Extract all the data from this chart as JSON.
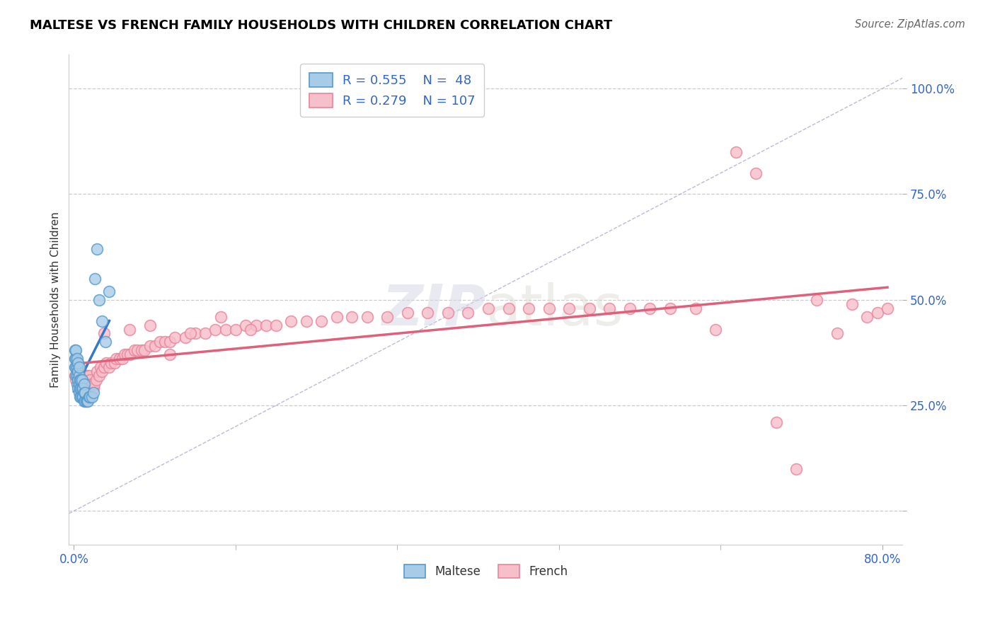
{
  "title": "MALTESE VS FRENCH FAMILY HOUSEHOLDS WITH CHILDREN CORRELATION CHART",
  "source": "Source: ZipAtlas.com",
  "ylabel_label": "Family Households with Children",
  "watermark_zip": "ZIP",
  "watermark_atlas": "atlas",
  "maltese_R": 0.555,
  "maltese_N": 48,
  "french_R": 0.279,
  "french_N": 107,
  "xlim": [
    -0.005,
    0.82
  ],
  "ylim": [
    -0.08,
    1.08
  ],
  "ytick_positions": [
    0.0,
    0.25,
    0.5,
    0.75,
    1.0
  ],
  "ytick_labels": [
    "",
    "25.0%",
    "50.0%",
    "75.0%",
    "100.0%"
  ],
  "grid_color": "#cccccc",
  "background_color": "#ffffff",
  "maltese_color": "#a8cce8",
  "maltese_edge_color": "#5599cc",
  "maltese_line_color": "#3377cc",
  "french_color": "#f7bfca",
  "french_edge_color": "#e8849a",
  "french_line_color": "#e0607a",
  "diag_line_color": "#aaaacc",
  "title_color": "#000000",
  "axis_label_color": "#3366cc",
  "maltese_x": [
    0.001,
    0.001,
    0.001,
    0.002,
    0.002,
    0.002,
    0.002,
    0.003,
    0.003,
    0.003,
    0.003,
    0.004,
    0.004,
    0.004,
    0.004,
    0.005,
    0.005,
    0.005,
    0.005,
    0.006,
    0.006,
    0.006,
    0.007,
    0.007,
    0.007,
    0.008,
    0.008,
    0.008,
    0.009,
    0.009,
    0.01,
    0.01,
    0.01,
    0.011,
    0.011,
    0.012,
    0.013,
    0.014,
    0.015,
    0.016,
    0.018,
    0.019,
    0.021,
    0.023,
    0.025,
    0.028,
    0.031,
    0.035
  ],
  "maltese_y": [
    0.34,
    0.36,
    0.38,
    0.32,
    0.34,
    0.36,
    0.38,
    0.3,
    0.32,
    0.34,
    0.36,
    0.29,
    0.31,
    0.33,
    0.35,
    0.28,
    0.3,
    0.32,
    0.34,
    0.27,
    0.29,
    0.31,
    0.27,
    0.29,
    0.31,
    0.27,
    0.29,
    0.31,
    0.27,
    0.29,
    0.26,
    0.28,
    0.3,
    0.26,
    0.28,
    0.26,
    0.26,
    0.26,
    0.27,
    0.27,
    0.27,
    0.28,
    0.55,
    0.62,
    0.5,
    0.45,
    0.4,
    0.52
  ],
  "french_x": [
    0.001,
    0.002,
    0.003,
    0.003,
    0.004,
    0.004,
    0.005,
    0.005,
    0.006,
    0.006,
    0.007,
    0.007,
    0.008,
    0.008,
    0.009,
    0.009,
    0.01,
    0.01,
    0.011,
    0.011,
    0.012,
    0.013,
    0.013,
    0.014,
    0.015,
    0.015,
    0.016,
    0.017,
    0.018,
    0.019,
    0.02,
    0.022,
    0.023,
    0.025,
    0.026,
    0.028,
    0.03,
    0.032,
    0.035,
    0.037,
    0.04,
    0.042,
    0.045,
    0.048,
    0.05,
    0.053,
    0.056,
    0.06,
    0.063,
    0.067,
    0.07,
    0.075,
    0.08,
    0.085,
    0.09,
    0.095,
    0.1,
    0.11,
    0.12,
    0.13,
    0.14,
    0.15,
    0.16,
    0.17,
    0.18,
    0.19,
    0.2,
    0.215,
    0.23,
    0.245,
    0.26,
    0.275,
    0.29,
    0.31,
    0.33,
    0.35,
    0.37,
    0.39,
    0.41,
    0.43,
    0.45,
    0.47,
    0.49,
    0.51,
    0.53,
    0.55,
    0.57,
    0.59,
    0.615,
    0.635,
    0.655,
    0.675,
    0.695,
    0.715,
    0.735,
    0.755,
    0.77,
    0.785,
    0.795,
    0.805,
    0.03,
    0.055,
    0.075,
    0.095,
    0.115,
    0.145,
    0.175
  ],
  "french_y": [
    0.32,
    0.31,
    0.33,
    0.34,
    0.32,
    0.35,
    0.31,
    0.33,
    0.3,
    0.32,
    0.31,
    0.33,
    0.3,
    0.32,
    0.3,
    0.32,
    0.29,
    0.31,
    0.29,
    0.31,
    0.3,
    0.3,
    0.32,
    0.29,
    0.3,
    0.32,
    0.31,
    0.3,
    0.3,
    0.29,
    0.3,
    0.31,
    0.33,
    0.32,
    0.34,
    0.33,
    0.34,
    0.35,
    0.34,
    0.35,
    0.35,
    0.36,
    0.36,
    0.36,
    0.37,
    0.37,
    0.37,
    0.38,
    0.38,
    0.38,
    0.38,
    0.39,
    0.39,
    0.4,
    0.4,
    0.4,
    0.41,
    0.41,
    0.42,
    0.42,
    0.43,
    0.43,
    0.43,
    0.44,
    0.44,
    0.44,
    0.44,
    0.45,
    0.45,
    0.45,
    0.46,
    0.46,
    0.46,
    0.46,
    0.47,
    0.47,
    0.47,
    0.47,
    0.48,
    0.48,
    0.48,
    0.48,
    0.48,
    0.48,
    0.48,
    0.48,
    0.48,
    0.48,
    0.48,
    0.43,
    0.85,
    0.8,
    0.21,
    0.1,
    0.5,
    0.42,
    0.49,
    0.46,
    0.47,
    0.48,
    0.42,
    0.43,
    0.44,
    0.37,
    0.42,
    0.46,
    0.43
  ]
}
